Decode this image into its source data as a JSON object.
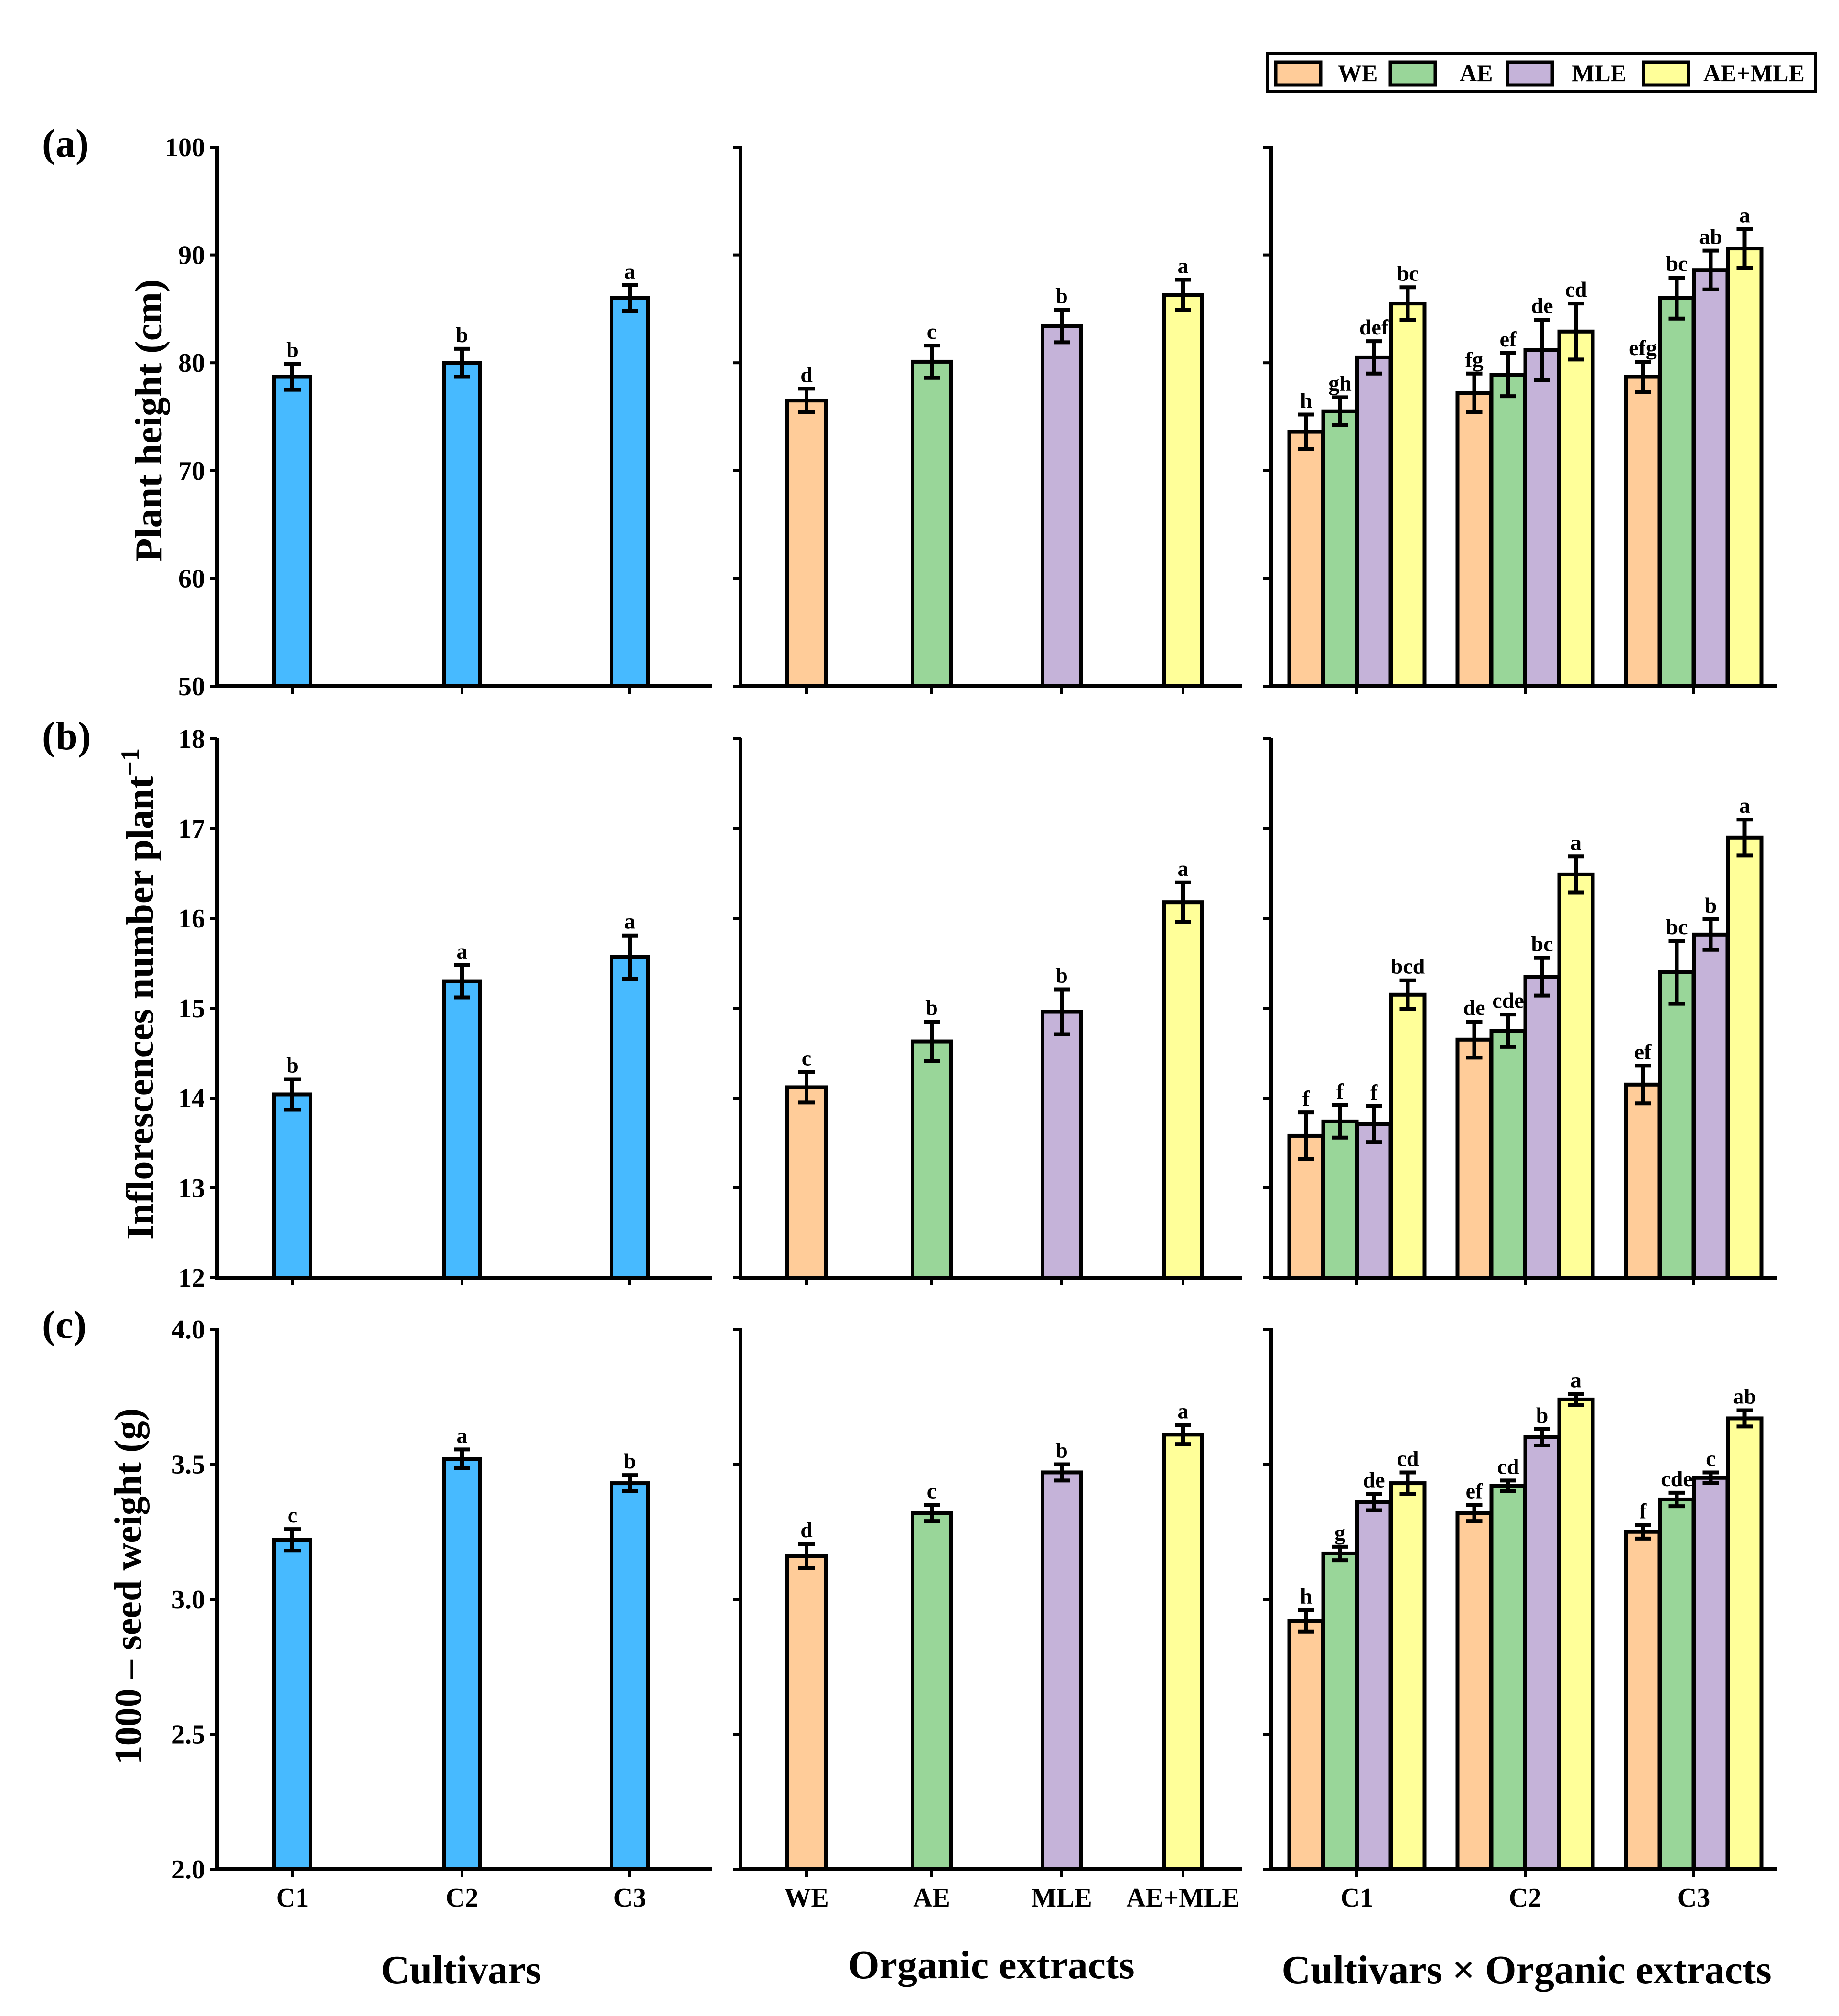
{
  "legend": [
    {
      "key": "WE",
      "label": "WE"
    },
    {
      "key": "AE",
      "label": "AE"
    },
    {
      "key": "MLE",
      "label": "MLE"
    },
    {
      "key": "AEMLE",
      "label": "AE+MLE"
    }
  ],
  "colors": {
    "cultivar": "#47baff",
    "WE": "#ffcc99",
    "AE": "#99d699",
    "MLE": "#c5b3d9",
    "AEMLE": "#ffff99"
  },
  "x_titles": {
    "col1": "Cultivars",
    "col2": "Organic extracts",
    "col3": "Cultivars × Organic extracts"
  },
  "chart_data": [
    {
      "type": "bar",
      "panel": "(a)",
      "ylabel": "Plant height (cm)",
      "ylim": [
        50,
        100
      ],
      "yticks": [
        "50",
        "60",
        "70",
        "80",
        "90",
        "100"
      ],
      "cultivars": {
        "categories": [
          "C1",
          "C2",
          "C3"
        ],
        "values": [
          78.7,
          80.0,
          86.0
        ],
        "errors": [
          1.2,
          1.3,
          1.2
        ],
        "letters": [
          "b",
          "b",
          "a"
        ]
      },
      "extracts": {
        "categories": [
          "WE",
          "AE",
          "MLE",
          "AE+MLE"
        ],
        "values": [
          76.5,
          80.1,
          83.4,
          86.3
        ],
        "errors": [
          1.1,
          1.5,
          1.5,
          1.4
        ],
        "letters": [
          "d",
          "c",
          "b",
          "a"
        ]
      },
      "interaction": {
        "categories": [
          "C1",
          "C2",
          "C3"
        ],
        "series": [
          {
            "name": "WE",
            "values": [
              73.6,
              77.2,
              78.7
            ],
            "errors": [
              1.6,
              1.8,
              1.4
            ],
            "letters": [
              "h",
              "fg",
              "efg"
            ]
          },
          {
            "name": "AE",
            "values": [
              75.5,
              78.9,
              86.0
            ],
            "errors": [
              1.3,
              2.0,
              1.9
            ],
            "letters": [
              "gh",
              "ef",
              "bc"
            ]
          },
          {
            "name": "MLE",
            "values": [
              80.5,
              81.2,
              88.6
            ],
            "errors": [
              1.5,
              2.8,
              1.8
            ],
            "letters": [
              "def",
              "de",
              "ab"
            ]
          },
          {
            "name": "AE+MLE",
            "values": [
              85.5,
              82.9,
              90.6
            ],
            "errors": [
              1.5,
              2.6,
              1.8
            ],
            "letters": [
              "bc",
              "cd",
              "a"
            ]
          }
        ]
      }
    },
    {
      "type": "bar",
      "panel": "(b)",
      "ylabel": "Inflorescences number plant",
      "ylabel_sup": "−1",
      "ylim": [
        12,
        18
      ],
      "yticks": [
        "12",
        "13",
        "14",
        "15",
        "16",
        "17",
        "18"
      ],
      "cultivars": {
        "categories": [
          "C1",
          "C2",
          "C3"
        ],
        "values": [
          14.04,
          15.3,
          15.57
        ],
        "errors": [
          0.17,
          0.18,
          0.24
        ],
        "letters": [
          "b",
          "a",
          "a"
        ]
      },
      "extracts": {
        "categories": [
          "WE",
          "AE",
          "MLE",
          "AE+MLE"
        ],
        "values": [
          14.12,
          14.63,
          14.96,
          16.18
        ],
        "errors": [
          0.17,
          0.22,
          0.25,
          0.22
        ],
        "letters": [
          "c",
          "b",
          "b",
          "a"
        ]
      },
      "interaction": {
        "categories": [
          "C1",
          "C2",
          "C3"
        ],
        "series": [
          {
            "name": "WE",
            "values": [
              13.58,
              14.65,
              14.15
            ],
            "errors": [
              0.26,
              0.2,
              0.21
            ],
            "letters": [
              "f",
              "de",
              "ef"
            ]
          },
          {
            "name": "AE",
            "values": [
              13.74,
              14.75,
              15.4
            ],
            "errors": [
              0.18,
              0.18,
              0.35
            ],
            "letters": [
              "f",
              "cde",
              "bc"
            ]
          },
          {
            "name": "MLE",
            "values": [
              13.71,
              15.35,
              15.82
            ],
            "errors": [
              0.2,
              0.21,
              0.17
            ],
            "letters": [
              "f",
              "bc",
              "b"
            ]
          },
          {
            "name": "AE+MLE",
            "values": [
              15.15,
              16.49,
              16.9
            ],
            "errors": [
              0.16,
              0.2,
              0.2
            ],
            "letters": [
              "bcd",
              "a",
              "a"
            ]
          }
        ]
      }
    },
    {
      "type": "bar",
      "panel": "(c)",
      "ylabel": "1000 – seed weight (g)",
      "ylim": [
        2.0,
        4.0
      ],
      "yticks": [
        "2.0",
        "2.5",
        "3.0",
        "3.5",
        "4.0"
      ],
      "cultivars": {
        "categories": [
          "C1",
          "C2",
          "C3"
        ],
        "values": [
          3.22,
          3.52,
          3.43
        ],
        "errors": [
          0.04,
          0.035,
          0.03
        ],
        "letters": [
          "c",
          "a",
          "b"
        ]
      },
      "extracts": {
        "categories": [
          "WE",
          "AE",
          "MLE",
          "AE+MLE"
        ],
        "values": [
          3.16,
          3.32,
          3.47,
          3.61
        ],
        "errors": [
          0.045,
          0.03,
          0.03,
          0.035
        ],
        "letters": [
          "d",
          "c",
          "b",
          "a"
        ]
      },
      "interaction": {
        "categories": [
          "C1",
          "C2",
          "C3"
        ],
        "series": [
          {
            "name": "WE",
            "values": [
              2.92,
              3.32,
              3.25
            ],
            "errors": [
              0.04,
              0.03,
              0.025
            ],
            "letters": [
              "h",
              "ef",
              "f"
            ]
          },
          {
            "name": "AE",
            "values": [
              3.17,
              3.42,
              3.37
            ],
            "errors": [
              0.025,
              0.02,
              0.025
            ],
            "letters": [
              "g",
              "cd",
              "cde"
            ]
          },
          {
            "name": "MLE",
            "values": [
              3.36,
              3.6,
              3.45
            ],
            "errors": [
              0.03,
              0.03,
              0.02
            ],
            "letters": [
              "de",
              "b",
              "c"
            ]
          },
          {
            "name": "AE+MLE",
            "values": [
              3.43,
              3.74,
              3.67
            ],
            "errors": [
              0.04,
              0.02,
              0.03
            ],
            "letters": [
              "cd",
              "a",
              "ab"
            ]
          }
        ]
      }
    }
  ]
}
